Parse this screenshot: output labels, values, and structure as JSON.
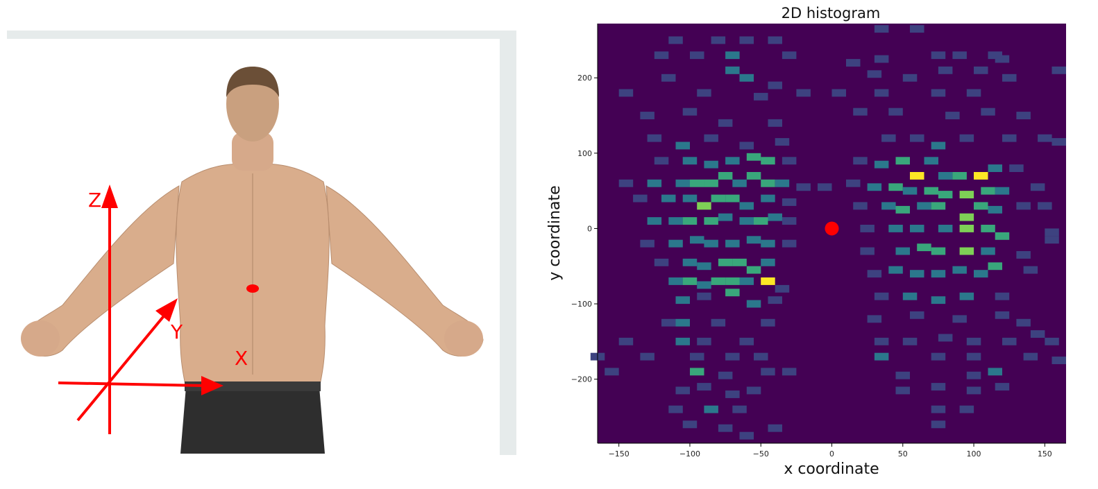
{
  "left_panel": {
    "axis_labels": {
      "z": "Z",
      "y": "Y",
      "x": "X"
    },
    "colors": {
      "axes": "#ff0000",
      "marker": "#ff0000",
      "backdrop": "#e6ebeb",
      "skin": "#d9ad8c",
      "pants": "#2e2e2e",
      "hair": "#6b4f37"
    }
  },
  "chart_data": {
    "type": "heatmap",
    "title": "2D histogram",
    "xlabel": "x coordinate",
    "ylabel": "y coordinate",
    "xlim": [
      -165,
      165
    ],
    "ylim": [
      -285,
      272
    ],
    "xticks": [
      -150,
      -100,
      -50,
      0,
      50,
      100,
      150
    ],
    "yticks": [
      200,
      100,
      0,
      -100,
      -200
    ],
    "xtick_labels": [
      "−150",
      "−100",
      "−50",
      "0",
      "50",
      "100",
      "150"
    ],
    "ytick_labels": [
      "200",
      "100",
      "0",
      "−100",
      "−200"
    ],
    "bin_size": 10,
    "colormap": "viridis",
    "colormap_stops": [
      "#440154",
      "#3b528b",
      "#21918c",
      "#5ec962",
      "#fde725"
    ],
    "background_color": "#440154",
    "bins": [
      {
        "x": -110,
        "y": 250,
        "v": 1
      },
      {
        "x": -80,
        "y": 250,
        "v": 1
      },
      {
        "x": -60,
        "y": 250,
        "v": 1
      },
      {
        "x": -40,
        "y": 250,
        "v": 1
      },
      {
        "x": -120,
        "y": 230,
        "v": 1
      },
      {
        "x": -95,
        "y": 230,
        "v": 1
      },
      {
        "x": -70,
        "y": 230,
        "v": 2
      },
      {
        "x": -30,
        "y": 230,
        "v": 1
      },
      {
        "x": -115,
        "y": 200,
        "v": 1
      },
      {
        "x": -70,
        "y": 210,
        "v": 2
      },
      {
        "x": -60,
        "y": 200,
        "v": 2
      },
      {
        "x": -40,
        "y": 190,
        "v": 1
      },
      {
        "x": -145,
        "y": 180,
        "v": 1
      },
      {
        "x": -90,
        "y": 180,
        "v": 1
      },
      {
        "x": -50,
        "y": 175,
        "v": 1
      },
      {
        "x": -20,
        "y": 180,
        "v": 1
      },
      {
        "x": -130,
        "y": 150,
        "v": 1
      },
      {
        "x": -100,
        "y": 155,
        "v": 1
      },
      {
        "x": -75,
        "y": 140,
        "v": 1
      },
      {
        "x": -40,
        "y": 140,
        "v": 1
      },
      {
        "x": -125,
        "y": 120,
        "v": 1
      },
      {
        "x": -105,
        "y": 110,
        "v": 2
      },
      {
        "x": -85,
        "y": 120,
        "v": 1
      },
      {
        "x": -60,
        "y": 110,
        "v": 1
      },
      {
        "x": -35,
        "y": 115,
        "v": 1
      },
      {
        "x": -120,
        "y": 90,
        "v": 1
      },
      {
        "x": -100,
        "y": 90,
        "v": 2
      },
      {
        "x": -85,
        "y": 85,
        "v": 2
      },
      {
        "x": -70,
        "y": 90,
        "v": 2
      },
      {
        "x": -55,
        "y": 95,
        "v": 3
      },
      {
        "x": -45,
        "y": 90,
        "v": 3
      },
      {
        "x": -30,
        "y": 90,
        "v": 1
      },
      {
        "x": -145,
        "y": 60,
        "v": 1
      },
      {
        "x": -125,
        "y": 60,
        "v": 2
      },
      {
        "x": -105,
        "y": 60,
        "v": 2
      },
      {
        "x": -95,
        "y": 60,
        "v": 3
      },
      {
        "x": -85,
        "y": 60,
        "v": 3
      },
      {
        "x": -75,
        "y": 70,
        "v": 3
      },
      {
        "x": -65,
        "y": 60,
        "v": 2
      },
      {
        "x": -55,
        "y": 70,
        "v": 3
      },
      {
        "x": -45,
        "y": 60,
        "v": 3
      },
      {
        "x": -35,
        "y": 60,
        "v": 2
      },
      {
        "x": -20,
        "y": 55,
        "v": 1
      },
      {
        "x": -5,
        "y": 55,
        "v": 1
      },
      {
        "x": -135,
        "y": 40,
        "v": 1
      },
      {
        "x": -115,
        "y": 40,
        "v": 2
      },
      {
        "x": -100,
        "y": 40,
        "v": 2
      },
      {
        "x": -90,
        "y": 30,
        "v": 4
      },
      {
        "x": -80,
        "y": 40,
        "v": 3
      },
      {
        "x": -70,
        "y": 40,
        "v": 3
      },
      {
        "x": -60,
        "y": 30,
        "v": 2
      },
      {
        "x": -45,
        "y": 40,
        "v": 2
      },
      {
        "x": -30,
        "y": 35,
        "v": 1
      },
      {
        "x": -125,
        "y": 10,
        "v": 2
      },
      {
        "x": -110,
        "y": 10,
        "v": 2
      },
      {
        "x": -100,
        "y": 10,
        "v": 3
      },
      {
        "x": -85,
        "y": 10,
        "v": 3
      },
      {
        "x": -75,
        "y": 15,
        "v": 2
      },
      {
        "x": -60,
        "y": 10,
        "v": 2
      },
      {
        "x": -50,
        "y": 10,
        "v": 3
      },
      {
        "x": -40,
        "y": 15,
        "v": 2
      },
      {
        "x": -30,
        "y": 10,
        "v": 1
      },
      {
        "x": -130,
        "y": -20,
        "v": 1
      },
      {
        "x": -110,
        "y": -20,
        "v": 2
      },
      {
        "x": -95,
        "y": -15,
        "v": 2
      },
      {
        "x": -85,
        "y": -20,
        "v": 2
      },
      {
        "x": -70,
        "y": -20,
        "v": 2
      },
      {
        "x": -55,
        "y": -15,
        "v": 2
      },
      {
        "x": -45,
        "y": -20,
        "v": 2
      },
      {
        "x": -30,
        "y": -20,
        "v": 1
      },
      {
        "x": -120,
        "y": -45,
        "v": 1
      },
      {
        "x": -100,
        "y": -45,
        "v": 2
      },
      {
        "x": -90,
        "y": -50,
        "v": 2
      },
      {
        "x": -75,
        "y": -45,
        "v": 3
      },
      {
        "x": -65,
        "y": -45,
        "v": 3
      },
      {
        "x": -55,
        "y": -55,
        "v": 3
      },
      {
        "x": -45,
        "y": -45,
        "v": 2
      },
      {
        "x": -110,
        "y": -70,
        "v": 2
      },
      {
        "x": -100,
        "y": -70,
        "v": 3
      },
      {
        "x": -90,
        "y": -75,
        "v": 2
      },
      {
        "x": -80,
        "y": -70,
        "v": 3
      },
      {
        "x": -70,
        "y": -70,
        "v": 3
      },
      {
        "x": -60,
        "y": -70,
        "v": 2
      },
      {
        "x": -45,
        "y": -70,
        "v": 5
      },
      {
        "x": -35,
        "y": -80,
        "v": 1
      },
      {
        "x": -105,
        "y": -95,
        "v": 2
      },
      {
        "x": -90,
        "y": -90,
        "v": 1
      },
      {
        "x": -70,
        "y": -85,
        "v": 3
      },
      {
        "x": -55,
        "y": -100,
        "v": 2
      },
      {
        "x": -40,
        "y": -95,
        "v": 1
      },
      {
        "x": -115,
        "y": -125,
        "v": 1
      },
      {
        "x": -105,
        "y": -125,
        "v": 2
      },
      {
        "x": -80,
        "y": -125,
        "v": 1
      },
      {
        "x": -45,
        "y": -125,
        "v": 1
      },
      {
        "x": -145,
        "y": -150,
        "v": 1
      },
      {
        "x": -105,
        "y": -150,
        "v": 2
      },
      {
        "x": -90,
        "y": -150,
        "v": 1
      },
      {
        "x": -60,
        "y": -150,
        "v": 1
      },
      {
        "x": -165,
        "y": -170,
        "v": 1
      },
      {
        "x": -130,
        "y": -170,
        "v": 1
      },
      {
        "x": -95,
        "y": -170,
        "v": 1
      },
      {
        "x": -70,
        "y": -170,
        "v": 1
      },
      {
        "x": -50,
        "y": -170,
        "v": 1
      },
      {
        "x": -155,
        "y": -190,
        "v": 1
      },
      {
        "x": -95,
        "y": -190,
        "v": 3
      },
      {
        "x": -75,
        "y": -195,
        "v": 1
      },
      {
        "x": -45,
        "y": -190,
        "v": 1
      },
      {
        "x": -30,
        "y": -190,
        "v": 1
      },
      {
        "x": -105,
        "y": -215,
        "v": 1
      },
      {
        "x": -90,
        "y": -210,
        "v": 1
      },
      {
        "x": -70,
        "y": -220,
        "v": 1
      },
      {
        "x": -55,
        "y": -215,
        "v": 1
      },
      {
        "x": -110,
        "y": -240,
        "v": 1
      },
      {
        "x": -85,
        "y": -240,
        "v": 2
      },
      {
        "x": -65,
        "y": -240,
        "v": 1
      },
      {
        "x": -100,
        "y": -260,
        "v": 1
      },
      {
        "x": -75,
        "y": -265,
        "v": 1
      },
      {
        "x": -40,
        "y": -265,
        "v": 1
      },
      {
        "x": -60,
        "y": -275,
        "v": 1
      },
      {
        "x": 35,
        "y": 265,
        "v": 1
      },
      {
        "x": 60,
        "y": 265,
        "v": 1
      },
      {
        "x": 15,
        "y": 220,
        "v": 1
      },
      {
        "x": 35,
        "y": 225,
        "v": 1
      },
      {
        "x": 75,
        "y": 230,
        "v": 1
      },
      {
        "x": 90,
        "y": 230,
        "v": 1
      },
      {
        "x": 115,
        "y": 230,
        "v": 1
      },
      {
        "x": 30,
        "y": 205,
        "v": 1
      },
      {
        "x": 55,
        "y": 200,
        "v": 1
      },
      {
        "x": 80,
        "y": 210,
        "v": 1
      },
      {
        "x": 105,
        "y": 210,
        "v": 1
      },
      {
        "x": 125,
        "y": 200,
        "v": 1
      },
      {
        "x": 160,
        "y": 210,
        "v": 1
      },
      {
        "x": 5,
        "y": 180,
        "v": 1
      },
      {
        "x": 35,
        "y": 180,
        "v": 1
      },
      {
        "x": 75,
        "y": 180,
        "v": 1
      },
      {
        "x": 100,
        "y": 180,
        "v": 1
      },
      {
        "x": 20,
        "y": 155,
        "v": 1
      },
      {
        "x": 45,
        "y": 155,
        "v": 1
      },
      {
        "x": 85,
        "y": 150,
        "v": 1
      },
      {
        "x": 110,
        "y": 155,
        "v": 1
      },
      {
        "x": 135,
        "y": 150,
        "v": 1
      },
      {
        "x": 40,
        "y": 120,
        "v": 1
      },
      {
        "x": 60,
        "y": 120,
        "v": 1
      },
      {
        "x": 75,
        "y": 110,
        "v": 2
      },
      {
        "x": 95,
        "y": 120,
        "v": 1
      },
      {
        "x": 125,
        "y": 120,
        "v": 1
      },
      {
        "x": 150,
        "y": 120,
        "v": 1
      },
      {
        "x": 20,
        "y": 90,
        "v": 1
      },
      {
        "x": 35,
        "y": 85,
        "v": 2
      },
      {
        "x": 50,
        "y": 90,
        "v": 3
      },
      {
        "x": 60,
        "y": 70,
        "v": 5
      },
      {
        "x": 70,
        "y": 90,
        "v": 2
      },
      {
        "x": 80,
        "y": 70,
        "v": 2
      },
      {
        "x": 90,
        "y": 70,
        "v": 3
      },
      {
        "x": 105,
        "y": 70,
        "v": 5
      },
      {
        "x": 115,
        "y": 80,
        "v": 2
      },
      {
        "x": 130,
        "y": 80,
        "v": 1
      },
      {
        "x": 15,
        "y": 60,
        "v": 1
      },
      {
        "x": 30,
        "y": 55,
        "v": 2
      },
      {
        "x": 45,
        "y": 55,
        "v": 3
      },
      {
        "x": 55,
        "y": 50,
        "v": 2
      },
      {
        "x": 70,
        "y": 50,
        "v": 3
      },
      {
        "x": 80,
        "y": 45,
        "v": 3
      },
      {
        "x": 95,
        "y": 45,
        "v": 4
      },
      {
        "x": 110,
        "y": 50,
        "v": 3
      },
      {
        "x": 120,
        "y": 50,
        "v": 2
      },
      {
        "x": 145,
        "y": 55,
        "v": 1
      },
      {
        "x": 20,
        "y": 30,
        "v": 1
      },
      {
        "x": 40,
        "y": 30,
        "v": 2
      },
      {
        "x": 50,
        "y": 25,
        "v": 3
      },
      {
        "x": 65,
        "y": 30,
        "v": 2
      },
      {
        "x": 75,
        "y": 30,
        "v": 3
      },
      {
        "x": 95,
        "y": 15,
        "v": 4
      },
      {
        "x": 105,
        "y": 30,
        "v": 3
      },
      {
        "x": 115,
        "y": 25,
        "v": 2
      },
      {
        "x": 135,
        "y": 30,
        "v": 1
      },
      {
        "x": 150,
        "y": 30,
        "v": 1
      },
      {
        "x": 25,
        "y": 0,
        "v": 1
      },
      {
        "x": 45,
        "y": 0,
        "v": 2
      },
      {
        "x": 60,
        "y": 0,
        "v": 2
      },
      {
        "x": 80,
        "y": 0,
        "v": 2
      },
      {
        "x": 95,
        "y": 0,
        "v": 4
      },
      {
        "x": 110,
        "y": 0,
        "v": 3
      },
      {
        "x": 120,
        "y": -10,
        "v": 3
      },
      {
        "x": 155,
        "y": -15,
        "v": 1
      },
      {
        "x": 25,
        "y": -30,
        "v": 1
      },
      {
        "x": 50,
        "y": -30,
        "v": 2
      },
      {
        "x": 65,
        "y": -25,
        "v": 3
      },
      {
        "x": 75,
        "y": -30,
        "v": 3
      },
      {
        "x": 95,
        "y": -30,
        "v": 4
      },
      {
        "x": 110,
        "y": -30,
        "v": 2
      },
      {
        "x": 135,
        "y": -35,
        "v": 1
      },
      {
        "x": 30,
        "y": -60,
        "v": 1
      },
      {
        "x": 45,
        "y": -55,
        "v": 2
      },
      {
        "x": 60,
        "y": -60,
        "v": 2
      },
      {
        "x": 75,
        "y": -60,
        "v": 2
      },
      {
        "x": 90,
        "y": -55,
        "v": 2
      },
      {
        "x": 105,
        "y": -60,
        "v": 2
      },
      {
        "x": 115,
        "y": -50,
        "v": 3
      },
      {
        "x": 140,
        "y": -55,
        "v": 1
      },
      {
        "x": 35,
        "y": -90,
        "v": 1
      },
      {
        "x": 55,
        "y": -90,
        "v": 2
      },
      {
        "x": 75,
        "y": -95,
        "v": 2
      },
      {
        "x": 95,
        "y": -90,
        "v": 2
      },
      {
        "x": 120,
        "y": -90,
        "v": 1
      },
      {
        "x": 30,
        "y": -120,
        "v": 1
      },
      {
        "x": 60,
        "y": -115,
        "v": 1
      },
      {
        "x": 90,
        "y": -120,
        "v": 1
      },
      {
        "x": 120,
        "y": -115,
        "v": 1
      },
      {
        "x": 135,
        "y": -125,
        "v": 1
      },
      {
        "x": 35,
        "y": -150,
        "v": 1
      },
      {
        "x": 55,
        "y": -150,
        "v": 1
      },
      {
        "x": 80,
        "y": -145,
        "v": 1
      },
      {
        "x": 100,
        "y": -150,
        "v": 1
      },
      {
        "x": 125,
        "y": -150,
        "v": 1
      },
      {
        "x": 145,
        "y": -140,
        "v": 1
      },
      {
        "x": 155,
        "y": -150,
        "v": 1
      },
      {
        "x": 35,
        "y": -170,
        "v": 2
      },
      {
        "x": 75,
        "y": -170,
        "v": 1
      },
      {
        "x": 100,
        "y": -170,
        "v": 1
      },
      {
        "x": 140,
        "y": -170,
        "v": 1
      },
      {
        "x": 160,
        "y": -175,
        "v": 1
      },
      {
        "x": 50,
        "y": -195,
        "v": 1
      },
      {
        "x": 100,
        "y": -195,
        "v": 1
      },
      {
        "x": 115,
        "y": -190,
        "v": 2
      },
      {
        "x": 50,
        "y": -215,
        "v": 1
      },
      {
        "x": 75,
        "y": -210,
        "v": 1
      },
      {
        "x": 100,
        "y": -215,
        "v": 1
      },
      {
        "x": 120,
        "y": -210,
        "v": 1
      },
      {
        "x": 75,
        "y": -240,
        "v": 1
      },
      {
        "x": 95,
        "y": -240,
        "v": 1
      },
      {
        "x": 75,
        "y": -260,
        "v": 1
      },
      {
        "x": 120,
        "y": 225,
        "v": 1
      },
      {
        "x": 160,
        "y": 115,
        "v": 1
      },
      {
        "x": 155,
        "y": -5,
        "v": 1
      }
    ],
    "origin_marker": {
      "x": 0,
      "y": 0,
      "color": "#ff0000"
    }
  }
}
